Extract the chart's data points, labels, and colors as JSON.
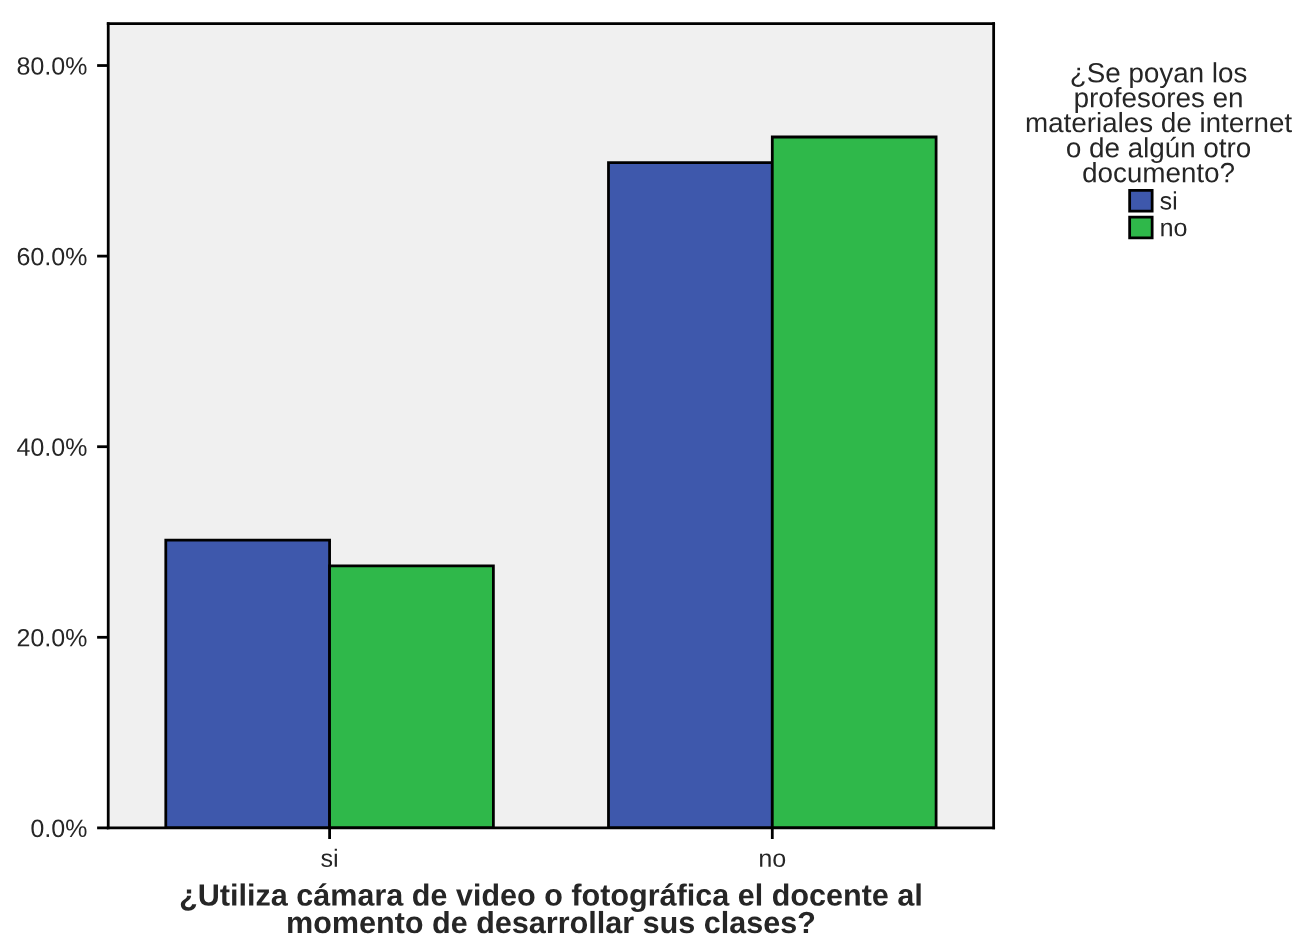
{
  "chart_data": {
    "type": "bar",
    "xlabel": "¿Utiliza cámara de video o fotográfica el docente al\nmomento de desarrollar sus clases?",
    "legend_title": "¿Se poyan los\nprofesores en\nmateriales de internet\no de algún otro\ndocumento?",
    "categories": [
      "si",
      "no"
    ],
    "series": [
      {
        "name": "si",
        "color": "#3e58ac",
        "values": [
          30.2,
          69.8
        ]
      },
      {
        "name": "no",
        "color": "#2fb84a",
        "values": [
          27.5,
          72.5
        ]
      }
    ],
    "ylim": [
      0,
      84.4
    ],
    "yticks": [
      {
        "value": 0,
        "label": "0.0%"
      },
      {
        "value": 20,
        "label": "20.0%"
      },
      {
        "value": 40,
        "label": "40.0%"
      },
      {
        "value": 60,
        "label": "60.0%"
      },
      {
        "value": 80,
        "label": "80.0%"
      }
    ],
    "legend": "right",
    "grid": false
  }
}
